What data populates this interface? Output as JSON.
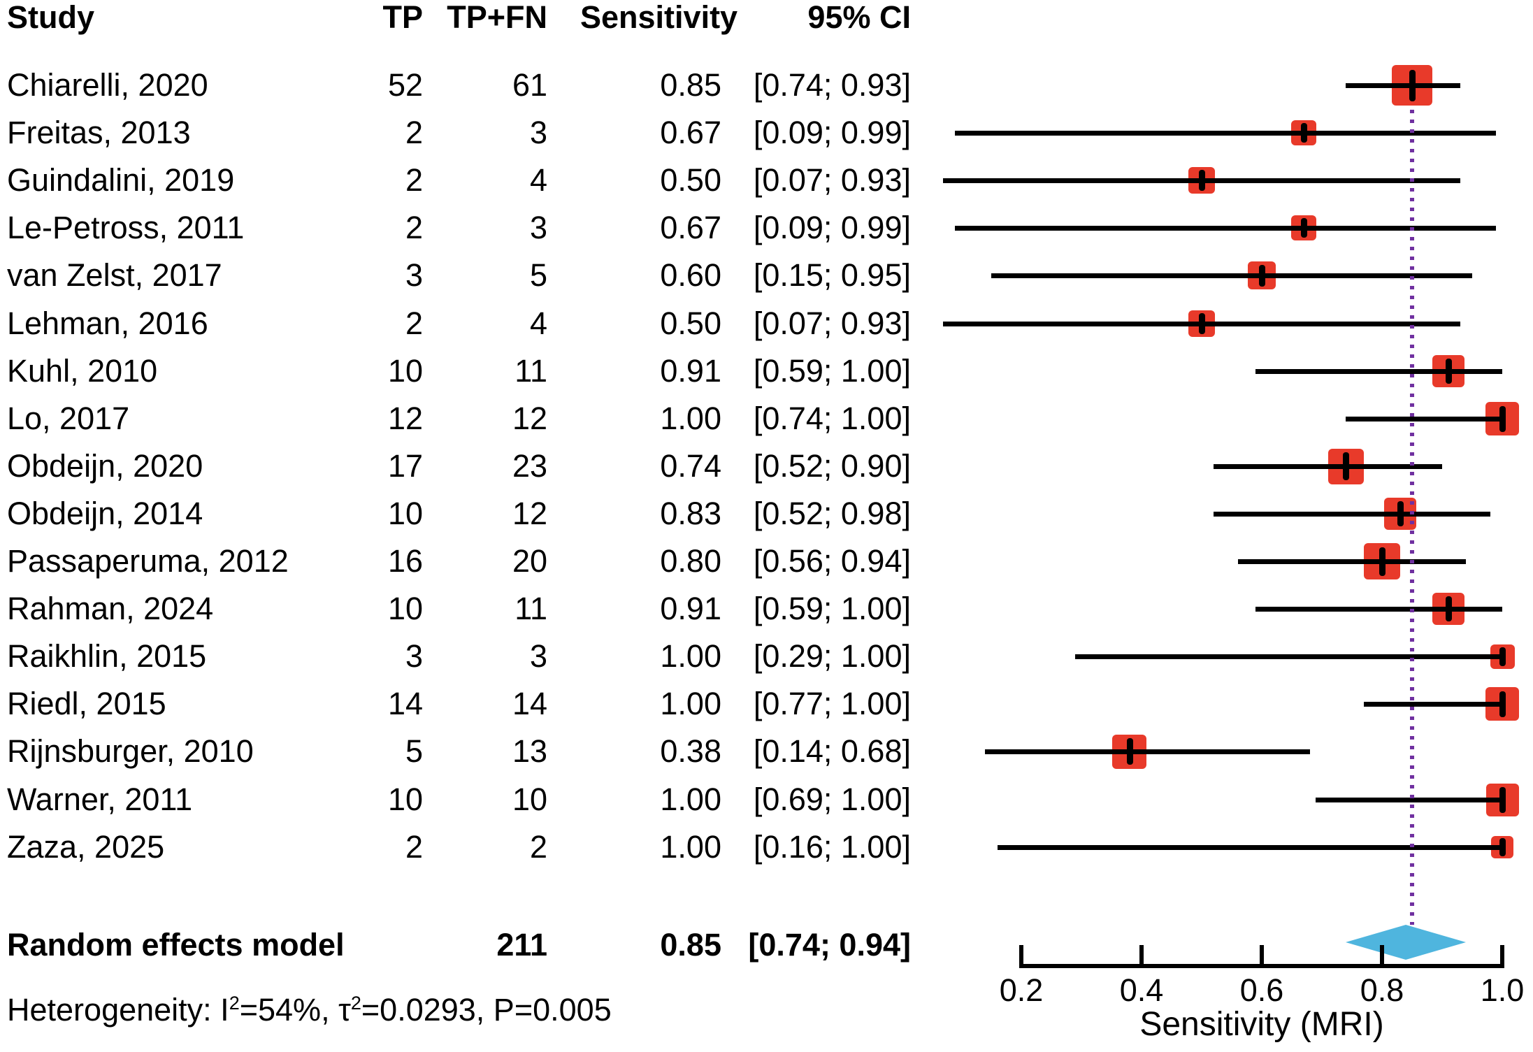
{
  "table": {
    "headers": {
      "study": "Study",
      "tp": "TP",
      "tp_fn": "TP+FN",
      "sensitivity": "Sensitivity",
      "ci": "95% CI"
    },
    "summary": {
      "label": "Random effects model",
      "tp_fn": "211",
      "sensitivity": "0.85",
      "ci": "[0.74; 0.94]"
    },
    "heterogeneity": {
      "i2": "54%",
      "tau2": "0.0293",
      "p": "0.005",
      "segments": [
        {
          "text": "Heterogeneity: I"
        },
        {
          "text": "2",
          "sup": true
        },
        {
          "text": "=54%, τ"
        },
        {
          "text": "2",
          "sup": true
        },
        {
          "text": "=0.0293, P=0.005"
        }
      ]
    }
  },
  "chart_data": {
    "type": "forest",
    "xlabel": "Sensitivity (MRI)",
    "x_ticks": [
      0.2,
      0.4,
      0.6,
      0.8,
      1.0
    ],
    "xlim": [
      0.05,
      1.03
    ],
    "reference_line": 0.85,
    "colors": {
      "square": "#e83a2a",
      "diamond": "#4fb5de",
      "reference_line": "#7030a0",
      "ci_line": "#000000"
    },
    "studies": [
      {
        "study": "Chiarelli, 2020",
        "tp": 52,
        "tp_fn": 61,
        "sensitivity": 0.85,
        "ci_low": 0.74,
        "ci_high": 0.93,
        "ci_label": "[0.74; 0.93]",
        "marker_size": 58
      },
      {
        "study": "Freitas, 2013",
        "tp": 2,
        "tp_fn": 3,
        "sensitivity": 0.67,
        "ci_low": 0.09,
        "ci_high": 0.99,
        "ci_label": "[0.09; 0.99]",
        "marker_size": 36
      },
      {
        "study": "Guindalini, 2019",
        "tp": 2,
        "tp_fn": 4,
        "sensitivity": 0.5,
        "ci_low": 0.07,
        "ci_high": 0.93,
        "ci_label": "[0.07; 0.93]",
        "marker_size": 38
      },
      {
        "study": "Le-Petross, 2011",
        "tp": 2,
        "tp_fn": 3,
        "sensitivity": 0.67,
        "ci_low": 0.09,
        "ci_high": 0.99,
        "ci_label": "[0.09; 0.99]",
        "marker_size": 36
      },
      {
        "study": "van Zelst, 2017",
        "tp": 3,
        "tp_fn": 5,
        "sensitivity": 0.6,
        "ci_low": 0.15,
        "ci_high": 0.95,
        "ci_label": "[0.15; 0.95]",
        "marker_size": 40
      },
      {
        "study": "Lehman, 2016",
        "tp": 2,
        "tp_fn": 4,
        "sensitivity": 0.5,
        "ci_low": 0.07,
        "ci_high": 0.93,
        "ci_label": "[0.07; 0.93]",
        "marker_size": 38
      },
      {
        "study": "Kuhl, 2010",
        "tp": 10,
        "tp_fn": 11,
        "sensitivity": 0.91,
        "ci_low": 0.59,
        "ci_high": 1.0,
        "ci_label": "[0.59; 1.00]",
        "marker_size": 46
      },
      {
        "study": "Lo, 2017",
        "tp": 12,
        "tp_fn": 12,
        "sensitivity": 1.0,
        "ci_low": 0.74,
        "ci_high": 1.0,
        "ci_label": "[0.74; 1.00]",
        "marker_size": 48
      },
      {
        "study": "Obdeijn, 2020",
        "tp": 17,
        "tp_fn": 23,
        "sensitivity": 0.74,
        "ci_low": 0.52,
        "ci_high": 0.9,
        "ci_label": "[0.52; 0.90]",
        "marker_size": 51
      },
      {
        "study": "Obdeijn, 2014",
        "tp": 10,
        "tp_fn": 12,
        "sensitivity": 0.83,
        "ci_low": 0.52,
        "ci_high": 0.98,
        "ci_label": "[0.52; 0.98]",
        "marker_size": 46
      },
      {
        "study": "Passaperuma, 2012",
        "tp": 16,
        "tp_fn": 20,
        "sensitivity": 0.8,
        "ci_low": 0.56,
        "ci_high": 0.94,
        "ci_label": "[0.56; 0.94]",
        "marker_size": 52
      },
      {
        "study": "Rahman, 2024",
        "tp": 10,
        "tp_fn": 11,
        "sensitivity": 0.91,
        "ci_low": 0.59,
        "ci_high": 1.0,
        "ci_label": "[0.59; 1.00]",
        "marker_size": 46
      },
      {
        "study": "Raikhlin, 2015",
        "tp": 3,
        "tp_fn": 3,
        "sensitivity": 1.0,
        "ci_low": 0.29,
        "ci_high": 1.0,
        "ci_label": "[0.29; 1.00]",
        "marker_size": 35
      },
      {
        "study": "Riedl, 2015",
        "tp": 14,
        "tp_fn": 14,
        "sensitivity": 1.0,
        "ci_low": 0.77,
        "ci_high": 1.0,
        "ci_label": "[0.77; 1.00]",
        "marker_size": 48
      },
      {
        "study": "Rijnsburger, 2010",
        "tp": 5,
        "tp_fn": 13,
        "sensitivity": 0.38,
        "ci_low": 0.14,
        "ci_high": 0.68,
        "ci_label": "[0.14; 0.68]",
        "marker_size": 49
      },
      {
        "study": "Warner, 2011",
        "tp": 10,
        "tp_fn": 10,
        "sensitivity": 1.0,
        "ci_low": 0.69,
        "ci_high": 1.0,
        "ci_label": "[0.69; 1.00]",
        "marker_size": 47
      },
      {
        "study": "Zaza, 2025",
        "tp": 2,
        "tp_fn": 2,
        "sensitivity": 1.0,
        "ci_low": 0.16,
        "ci_high": 1.0,
        "ci_label": "[0.16; 1.00]",
        "marker_size": 32
      }
    ],
    "summary": {
      "label": "Random effects model",
      "total_tp_fn": 211,
      "estimate": 0.85,
      "ci_low": 0.74,
      "ci_high": 0.94,
      "ci_label": "[0.74; 0.94]"
    }
  }
}
